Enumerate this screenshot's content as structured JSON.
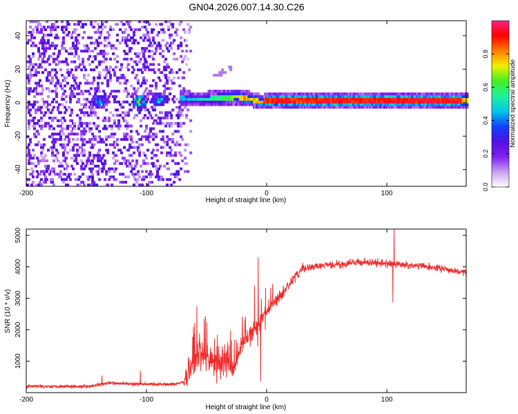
{
  "figure_title": "GN04.2026.007.14.30.C26",
  "colors": {
    "line": "#ee2c2c",
    "axis": "#000000",
    "background": "#ffffff"
  },
  "chart_data": [
    {
      "type": "heatmap",
      "title": "GN04.2026.007.14.30.C26",
      "xlabel": "Height of straight line (km)",
      "ylabel": "Frequency (Hz)",
      "xlim": [
        -200,
        166
      ],
      "ylim": [
        -50,
        49
      ],
      "xticks": [
        -200,
        -100,
        0,
        100
      ],
      "xtick_labels": [
        "-200",
        "-100",
        "0",
        "100"
      ],
      "yticks": [
        -40,
        -20,
        0,
        20,
        40
      ],
      "ytick_labels": [
        "-40",
        "-20",
        "0",
        "20",
        "40"
      ],
      "colorbar": {
        "label": "Normalized spectral amplitude",
        "range": [
          0,
          1
        ],
        "ticks": [
          0.0,
          0.2,
          0.4,
          0.6,
          0.8
        ],
        "tick_labels": [
          "0.0",
          "0.2",
          "0.4",
          "0.6",
          "0.8"
        ],
        "colormap": [
          "#ffffff",
          "#c8a0f0",
          "#8020f0",
          "#5010e0",
          "#1040ff",
          "#00c8e8",
          "#20f0a0",
          "#40f020",
          "#f0f000",
          "#ff8000",
          "#ff0000",
          "#ff2080"
        ]
      },
      "features": {
        "noise_region_x": [
          -200,
          -72
        ],
        "noise_density_start": 0.28,
        "noise_density_end": 0.2,
        "ridge_start_x": -73,
        "ridge_freq_hz": 1,
        "ridge_centers": [
          [
            -73,
            2
          ],
          [
            -60,
            1
          ],
          [
            -40,
            2
          ],
          [
            -25,
            2.5
          ],
          [
            -15,
            1.5
          ],
          [
            -5,
            -0.5
          ],
          [
            0,
            0.5
          ],
          [
            166,
            0.5
          ]
        ],
        "ridge_intensity": [
          [
            -73,
            0.45
          ],
          [
            -55,
            0.5
          ],
          [
            -35,
            0.6
          ],
          [
            -20,
            0.8
          ],
          [
            -10,
            0.75
          ],
          [
            0,
            0.92
          ],
          [
            160,
            0.95
          ],
          [
            166,
            0.7
          ]
        ],
        "clusters": [
          {
            "x": -140,
            "freq": 0,
            "value": 0.4
          },
          {
            "x": -106,
            "freq": 0,
            "value": 0.55
          },
          {
            "x": -90,
            "freq": 1,
            "value": 0.45
          }
        ],
        "side_branch": [
          [
            -45,
            15
          ],
          [
            -30,
            20
          ]
        ]
      }
    },
    {
      "type": "line",
      "xlabel": "Height of straight line (km)",
      "ylabel": "SNR (10 * v/v)",
      "xlim": [
        -200,
        166
      ],
      "ylim": [
        0,
        5200
      ],
      "xticks": [
        -200,
        -100,
        0,
        100
      ],
      "xtick_labels": [
        "-200",
        "-100",
        "0",
        "100"
      ],
      "yticks": [
        1000,
        2000,
        3000,
        4000,
        5000
      ],
      "ytick_labels": [
        "1000",
        "2000",
        "3000",
        "4000",
        "5000"
      ],
      "series": [
        {
          "name": "SNR",
          "envelope": [
            [
              -200,
              200
            ],
            [
              -150,
              200
            ],
            [
              -130,
              300
            ],
            [
              -110,
              270
            ],
            [
              -90,
              270
            ],
            [
              -75,
              270
            ],
            [
              -68,
              400
            ],
            [
              -60,
              1000
            ],
            [
              -52,
              1200
            ],
            [
              -44,
              900
            ],
            [
              -36,
              1000
            ],
            [
              -28,
              800
            ],
            [
              -20,
              1600
            ],
            [
              -10,
              2000
            ],
            [
              0,
              2600
            ],
            [
              10,
              3000
            ],
            [
              20,
              3500
            ],
            [
              30,
              3950
            ],
            [
              50,
              4050
            ],
            [
              80,
              4150
            ],
            [
              100,
              4100
            ],
            [
              120,
              4050
            ],
            [
              145,
              3950
            ],
            [
              166,
              3800
            ]
          ],
          "noise": [
            [
              -200,
              80
            ],
            [
              -70,
              80
            ],
            [
              -66,
              700
            ],
            [
              -30,
              700
            ],
            [
              -28,
              450
            ],
            [
              0,
              350
            ],
            [
              20,
              250
            ],
            [
              40,
              180
            ],
            [
              166,
              160
            ]
          ],
          "spikes": [
            {
              "x": -58,
              "y": 2750
            },
            {
              "x": -52,
              "y": 2350
            },
            {
              "x": -7,
              "y": 4300
            },
            {
              "x": -5,
              "y": 350
            },
            {
              "x": -10,
              "y": 3400
            },
            {
              "x": 106,
              "y": 5200
            },
            {
              "x": 105,
              "y": 2870
            },
            {
              "x": -105,
              "y": 700
            },
            {
              "x": -137,
              "y": 550
            }
          ]
        }
      ]
    }
  ]
}
